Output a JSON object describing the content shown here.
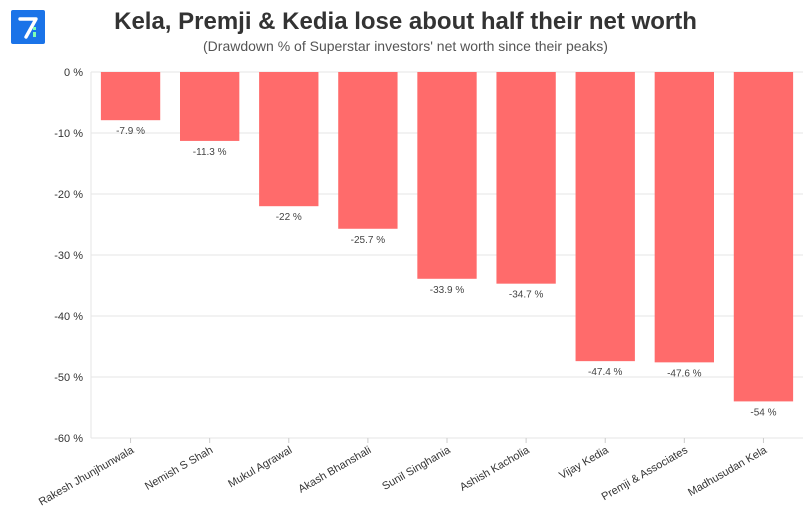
{
  "title": "Kela, Premji & Kedia lose about half their net worth",
  "subtitle": "(Drawdown % of Superstar investors' net worth since their peaks)",
  "logo": {
    "name": "logo-icon",
    "color": "#1a73e8"
  },
  "chart_data": {
    "type": "bar",
    "categories": [
      "Rakesh Jhunjhunwala",
      "Nemish S Shah",
      "Mukul Agrawal",
      "Akash Bhanshali",
      "Sunil Singhania",
      "Ashish Kacholia",
      "Vijay Kedia",
      "Premji & Associates",
      "Madhusudan Kela"
    ],
    "values": [
      -7.9,
      -11.3,
      -22,
      -25.7,
      -33.9,
      -34.7,
      -47.4,
      -47.6,
      -54
    ],
    "data_labels": [
      "-7.9 %",
      "-11.3 %",
      "-22 %",
      "-25.7 %",
      "-33.9 %",
      "-34.7 %",
      "-47.4 %",
      "-47.6 %",
      "-54 %"
    ],
    "yticks": [
      0,
      -10,
      -20,
      -30,
      -40,
      -50,
      -60
    ],
    "ytick_labels": [
      "0 %",
      "-10 %",
      "-20 %",
      "-30 %",
      "-40 %",
      "-50 %",
      "-60 %"
    ],
    "ylim": [
      -60,
      0
    ],
    "grid": true,
    "bar_color": "#ff6b6b",
    "xlabel": "",
    "ylabel": ""
  }
}
